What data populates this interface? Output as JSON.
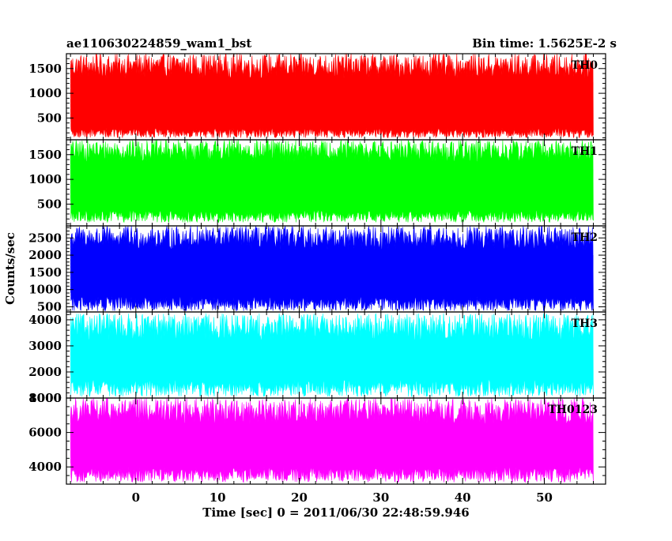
{
  "header": {
    "title_left": "ae110630224859_wam1_bst",
    "title_right": "Bin time: 1.5625E-2 s"
  },
  "chart_data": {
    "type": "line",
    "xlabel": "Time [sec] 0 = 2011/06/30 22:48:59.946",
    "ylabel": "Counts/sec",
    "xlim": [
      -8.5,
      57.5
    ],
    "x_ticks": [
      0,
      10,
      20,
      30,
      40,
      50
    ],
    "x_minor_step": 2,
    "data_x_range": [
      -8.0,
      56.0
    ],
    "bin_time": 0.015625,
    "panels": [
      {
        "label": "TH0",
        "color": "#ff0000",
        "ylim": [
          60,
          1800
        ],
        "y_ticks": [
          500,
          1000,
          1500
        ],
        "y_minor_step": 100,
        "low_range": [
          100,
          300
        ],
        "high_range": [
          1300,
          1800
        ],
        "fill_base": [
          480,
          1220
        ]
      },
      {
        "label": "TH1",
        "color": "#00ff00",
        "ylim": [
          60,
          1800
        ],
        "y_ticks": [
          500,
          1000,
          1500
        ],
        "y_minor_step": 100,
        "low_range": [
          130,
          380
        ],
        "high_range": [
          1350,
          1800
        ],
        "fill_base": [
          560,
          1200
        ]
      },
      {
        "label": "TH2",
        "color": "#0000ff",
        "ylim": [
          350,
          2850
        ],
        "y_ticks": [
          500,
          1000,
          1500,
          2000,
          2500
        ],
        "y_minor_step": 100,
        "low_range": [
          380,
          800
        ],
        "high_range": [
          2150,
          2850
        ],
        "fill_base": [
          900,
          2000
        ]
      },
      {
        "label": "TH3",
        "color": "#00ffff",
        "ylim": [
          1000,
          4300
        ],
        "y_ticks": [
          1000,
          2000,
          3000,
          4000
        ],
        "y_minor_step": 200,
        "low_range": [
          1050,
          1700
        ],
        "high_range": [
          3200,
          4250
        ],
        "fill_base": [
          1900,
          3000
        ]
      },
      {
        "label": "TH0123",
        "color": "#ff00ff",
        "ylim": [
          3000,
          8000
        ],
        "y_ticks": [
          4000,
          6000,
          8000
        ],
        "y_minor_step": 500,
        "low_range": [
          3100,
          4000
        ],
        "high_range": [
          6500,
          8000
        ],
        "fill_base": [
          4200,
          6000
        ]
      }
    ]
  }
}
